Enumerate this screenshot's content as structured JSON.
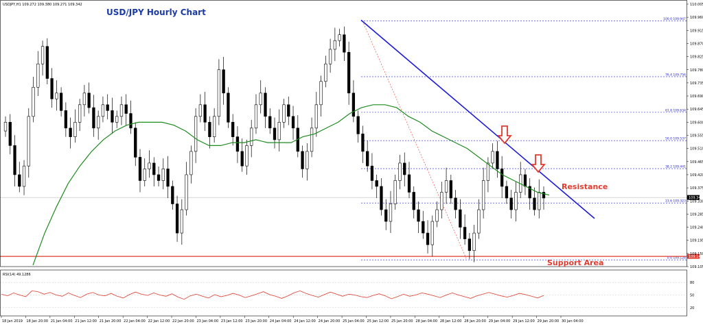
{
  "chart_data": [
    {
      "type": "candlestick",
      "title": "USD/JPY Hourly Chart",
      "header": "USDJPY,H1  109.272 109.380 109.271 109.342",
      "ylim": [
        109.105,
        110.005
      ],
      "y_ticks": [
        "110.005",
        "109.960",
        "109.915",
        "109.870",
        "109.825",
        "109.780",
        "109.735",
        "109.690",
        "109.645",
        "109.600",
        "109.555",
        "109.510",
        "109.465",
        "109.420",
        "109.375",
        "109.330",
        "109.285",
        "109.240",
        "109.195",
        "109.150",
        "109.105"
      ],
      "x_ticks": [
        "18 Jan 2019",
        "18 Jan 20:00",
        "21 Jan 04:00",
        "21 Jan 12:00",
        "21 Jan 20:00",
        "22 Jan 04:00",
        "22 Jan 12:00",
        "22 Jan 20:00",
        "23 Jan 04:00",
        "23 Jan 12:00",
        "23 Jan 20:00",
        "24 Jan 04:00",
        "24 Jan 12:00",
        "24 Jan 20:00",
        "25 Jan 04:00",
        "25 Jan 12:00",
        "25 Jan 20:00",
        "28 Jan 04:00",
        "28 Jan 12:00",
        "28 Jan 20:00",
        "29 Jan 04:00",
        "29 Jan 12:00",
        "29 Jan 20:00",
        "30 Jan 04:00"
      ],
      "current_price": "109.342",
      "support_price": "109.140",
      "candle_close": [
        109.6,
        109.52,
        109.42,
        109.38,
        109.45,
        109.62,
        109.72,
        109.8,
        109.86,
        109.75,
        109.68,
        109.7,
        109.64,
        109.58,
        109.55,
        109.6,
        109.66,
        109.7,
        109.65,
        109.58,
        109.62,
        109.66,
        109.64,
        109.6,
        109.62,
        109.66,
        109.63,
        109.58,
        109.48,
        109.4,
        109.44,
        109.46,
        109.42,
        109.4,
        109.44,
        109.38,
        109.32,
        109.22,
        109.3,
        109.42,
        109.5,
        109.62,
        109.66,
        109.6,
        109.55,
        109.62,
        109.78,
        109.7,
        109.6,
        109.55,
        109.5,
        109.45,
        109.52,
        109.58,
        109.66,
        109.7,
        109.62,
        109.58,
        109.54,
        109.6,
        109.66,
        109.62,
        109.58,
        109.5,
        109.44,
        109.5,
        109.58,
        109.66,
        109.74,
        109.8,
        109.85,
        109.88,
        109.9,
        109.84,
        109.7,
        109.62,
        109.56,
        109.5,
        109.45,
        109.4,
        109.38,
        109.3,
        109.26,
        109.32,
        109.4,
        109.46,
        109.42,
        109.36,
        109.3,
        109.26,
        109.22,
        109.18,
        109.26,
        109.3,
        109.36,
        109.4,
        109.34,
        109.3,
        109.24,
        109.2,
        109.16,
        109.22,
        109.3,
        109.4,
        109.46,
        109.5,
        109.44,
        109.38,
        109.34,
        109.3,
        109.36,
        109.42,
        109.38,
        109.34,
        109.3,
        109.36,
        109.34
      ],
      "ma_period": "100",
      "ma_values": [
        109.11,
        109.22,
        109.31,
        109.39,
        109.45,
        109.5,
        109.54,
        109.57,
        109.59,
        109.6,
        109.6,
        109.6,
        109.59,
        109.57,
        109.54,
        109.52,
        109.52,
        109.53,
        109.53,
        109.54,
        109.53,
        109.53,
        109.53,
        109.55,
        109.56,
        109.58,
        109.6,
        109.63,
        109.65,
        109.66,
        109.66,
        109.65,
        109.62,
        109.6,
        109.57,
        109.55,
        109.53,
        109.51,
        109.48,
        109.45,
        109.42,
        109.4,
        109.38,
        109.36,
        109.35
      ],
      "rsi_label": "RSI(14) 49.1286",
      "rsi_ticks": [
        "80",
        "50",
        "20"
      ],
      "rsi_values": [
        52,
        48,
        55,
        50,
        46,
        60,
        58,
        52,
        56,
        50,
        47,
        55,
        49,
        44,
        52,
        56,
        50,
        48,
        54,
        47,
        43,
        51,
        57,
        52,
        49,
        55,
        50,
        47,
        53,
        45,
        40,
        48,
        52,
        47,
        43,
        51,
        46,
        49,
        54,
        50,
        44,
        48,
        53,
        58,
        51,
        47,
        42,
        48,
        55,
        60,
        54,
        49,
        45,
        51,
        57,
        52,
        47,
        52,
        50,
        46,
        44,
        49,
        53,
        48,
        41,
        46,
        52,
        47,
        50,
        55,
        52,
        48,
        44,
        50,
        55,
        50,
        46,
        42,
        48,
        52,
        56,
        52,
        48,
        45,
        49,
        54,
        51,
        47,
        43,
        49
      ],
      "fib_levels": [
        {
          "label": "100.0 109.947",
          "price": 109.947
        },
        {
          "label": "76.4 109.756",
          "price": 109.756
        },
        {
          "label": "61.8 109.634",
          "price": 109.634
        },
        {
          "label": "50.0 109.537",
          "price": 109.537
        },
        {
          "label": "38.2 109.441",
          "price": 109.441
        },
        {
          "label": "23.6 109.323",
          "price": 109.323
        },
        {
          "label": "0.0 109.128",
          "price": 109.128
        }
      ],
      "trendline_start": [
        109.95,
        "25 Jan 12:00"
      ],
      "trendline_end": [
        109.27,
        "30 Jan 04:00"
      ],
      "annotations": {
        "resistance": "Resistance",
        "support": "Support Area"
      },
      "colors": {
        "bull": "#ffffff",
        "bear": "#000000",
        "ma": "#1e8b1e",
        "rsi": "#e23a2e",
        "trend": "#1a1ad8",
        "support": "#e23a2e",
        "fib": "#1a1ad8",
        "fib_diag": "#e23a2e",
        "arrow": "#e23a2e",
        "title": "#1a3aa8"
      }
    }
  ]
}
